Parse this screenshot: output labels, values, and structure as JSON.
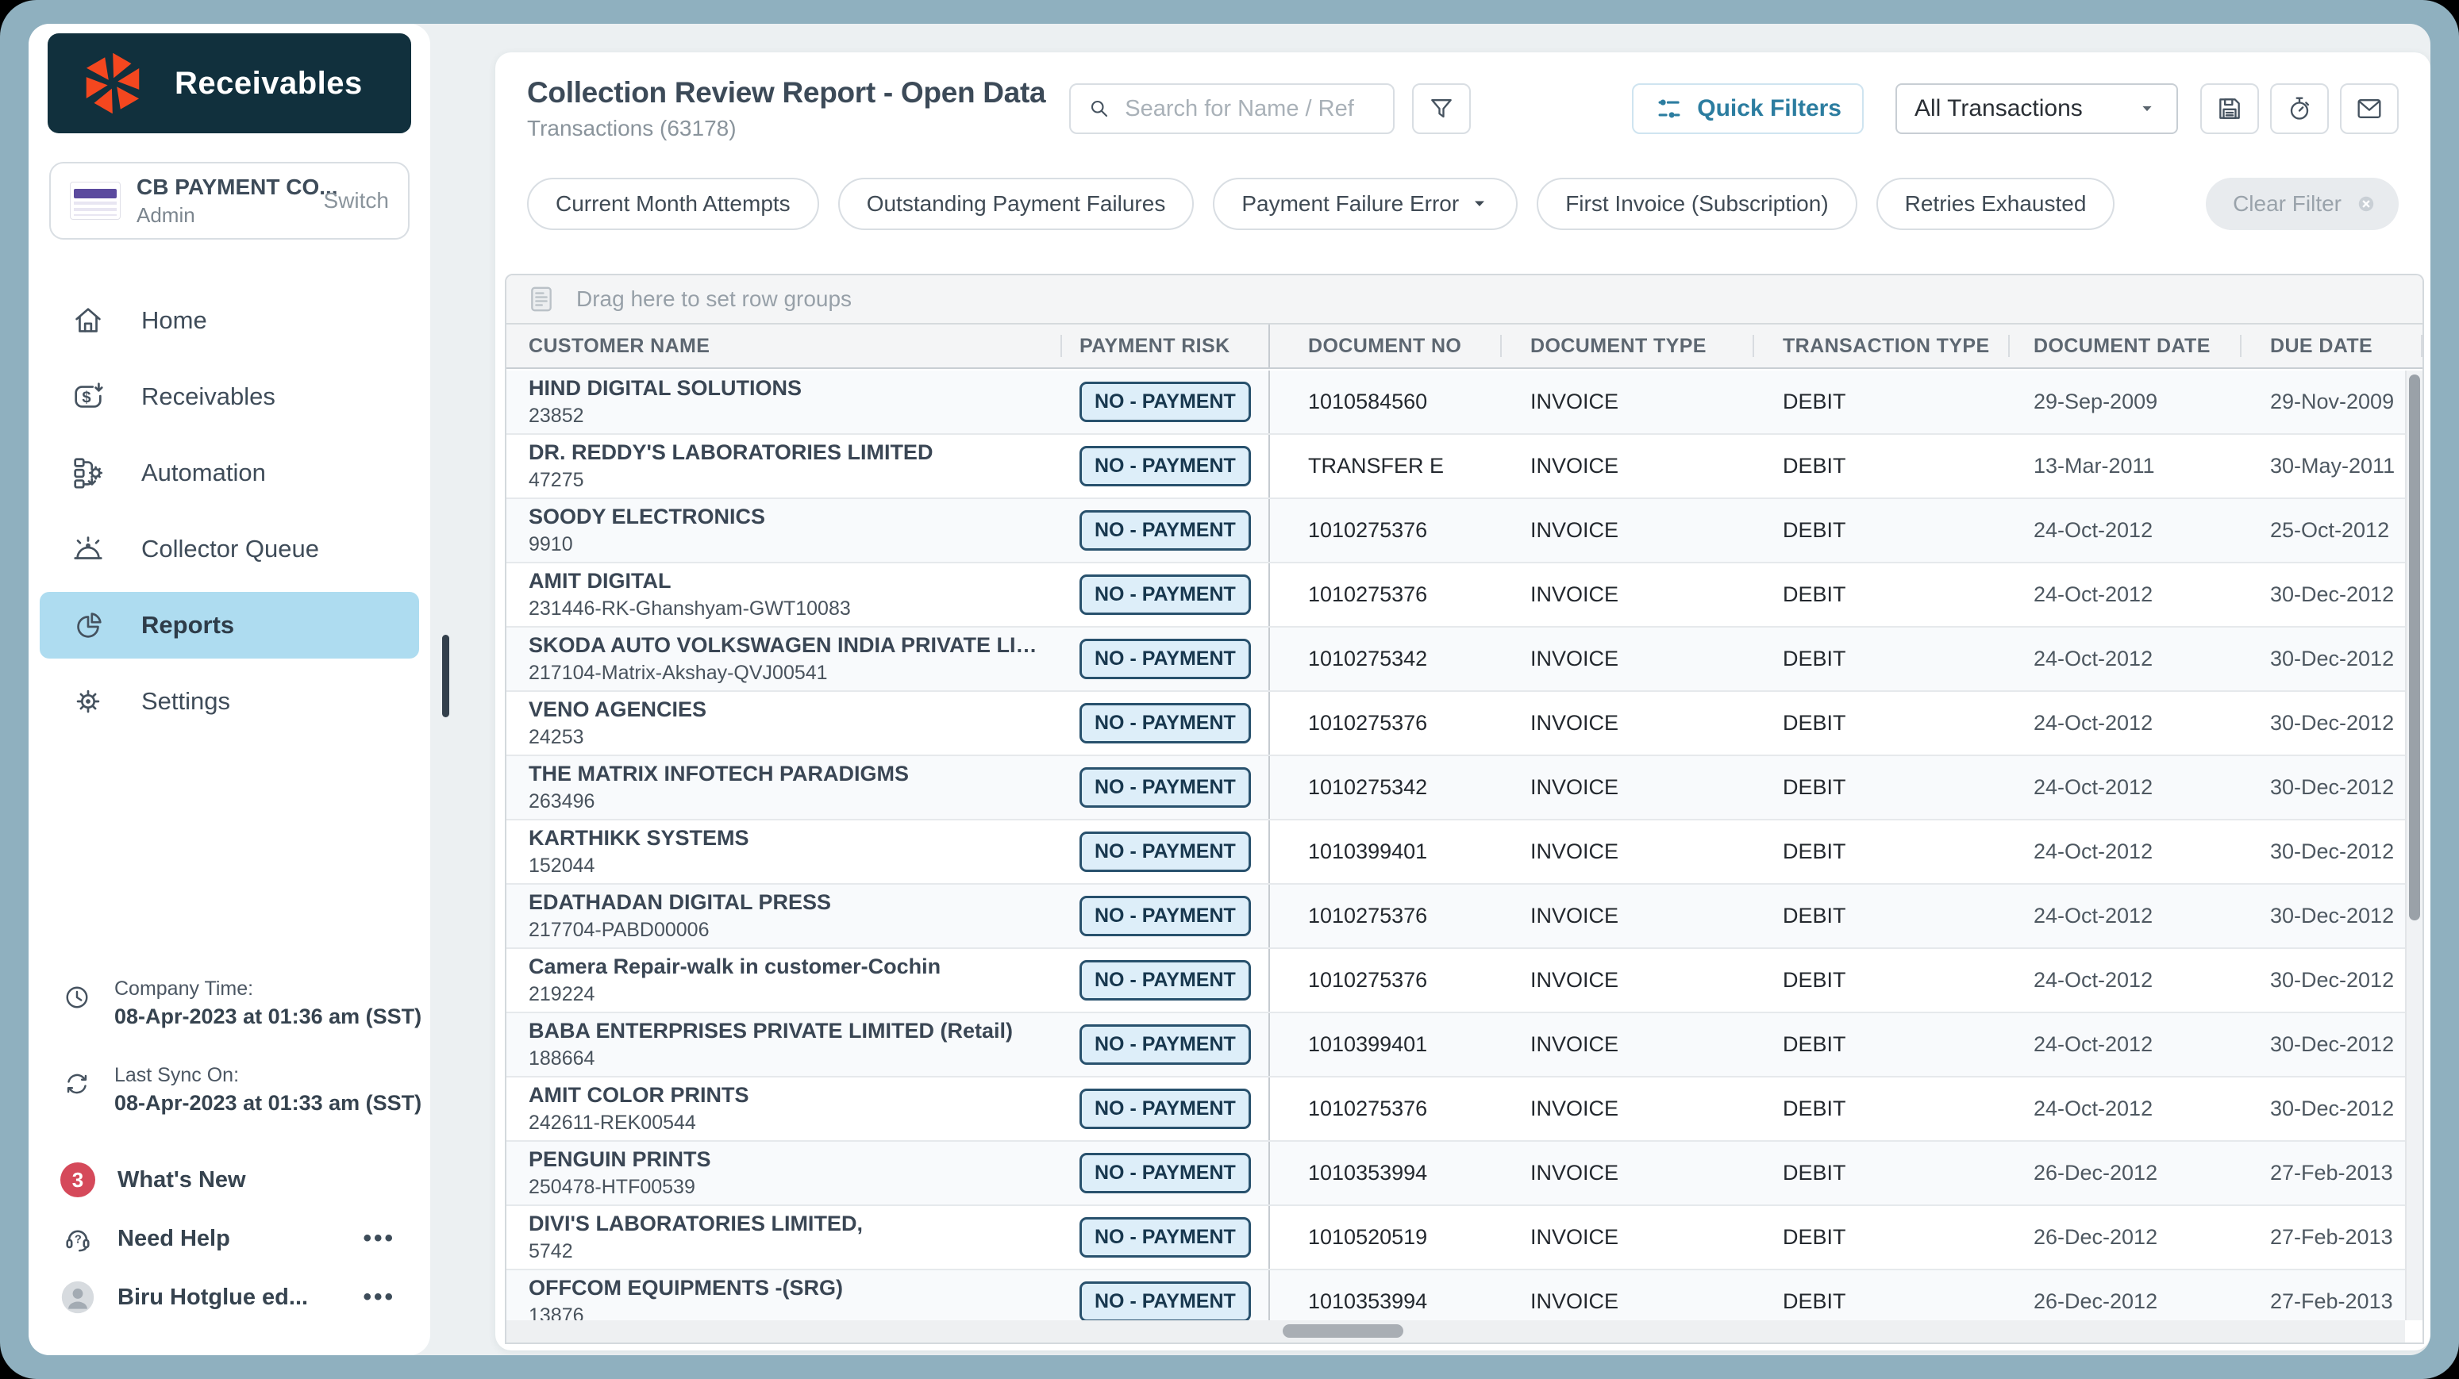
{
  "app": {
    "product_title": "Receivables"
  },
  "colors": {
    "brand_orange": "#f4471f",
    "sidebar_header_bg": "#11303d",
    "active_nav_bg": "#aedcf0",
    "quick_filters_accent": "#2c7da0",
    "risk_badge_bg": "#ddeef9",
    "risk_badge_border": "#28516d",
    "whats_new_badge_bg": "#d5495a",
    "frame_bg": "#8fb0bf"
  },
  "sidebar": {
    "company": {
      "name": "CB PAYMENT CO...",
      "role": "Admin",
      "switch_label": "Switch"
    },
    "nav": [
      {
        "icon": "home-icon",
        "label": "Home"
      },
      {
        "icon": "receivables-icon",
        "label": "Receivables"
      },
      {
        "icon": "automation-icon",
        "label": "Automation"
      },
      {
        "icon": "collector-queue-icon",
        "label": "Collector Queue"
      },
      {
        "icon": "reports-icon",
        "label": "Reports",
        "active": true
      },
      {
        "icon": "settings-icon",
        "label": "Settings"
      }
    ],
    "footer": {
      "company_time_label": "Company Time:",
      "company_time_value": "08-Apr-2023 at 01:36 am (SST)",
      "last_sync_label": "Last Sync On:",
      "last_sync_value": "08-Apr-2023 at 01:33 am (SST)",
      "whats_new_badge": "3",
      "whats_new_label": "What's New",
      "need_help_label": "Need Help",
      "need_help_more": "•••",
      "user_name": "Biru Hotglue ed...",
      "user_more": "•••"
    }
  },
  "header": {
    "title": "Collection Review Report - Open Data",
    "subtitle": "Transactions (63178)",
    "search_placeholder": "Search for Name / Ref",
    "quick_filters_label": "Quick Filters",
    "transactions_dropdown_value": "All Transactions"
  },
  "filters": {
    "chips": [
      {
        "label": "Current Month Attempts"
      },
      {
        "label": "Outstanding Payment Failures"
      },
      {
        "label": "Payment Failure Error",
        "caret": true
      },
      {
        "label": "First Invoice (Subscription)"
      },
      {
        "label": "Retries Exhausted"
      }
    ],
    "clear_label": "Clear Filter"
  },
  "table": {
    "drag_hint": "Drag here to set row groups",
    "columns": [
      "CUSTOMER NAME",
      "PAYMENT RISK",
      "DOCUMENT NO",
      "DOCUMENT TYPE",
      "TRANSACTION TYPE",
      "DOCUMENT DATE",
      "DUE DATE"
    ],
    "rows": [
      {
        "customer": "HIND DIGITAL SOLUTIONS",
        "ref": "23852",
        "risk": "NO - PAYMENT",
        "doc_no": "1010584560",
        "doc_type": "INVOICE",
        "txn_type": "DEBIT",
        "doc_date": "29-Sep-2009",
        "due_date": "29-Nov-2009"
      },
      {
        "customer": "DR. REDDY'S LABORATORIES LIMITED",
        "ref": "47275",
        "risk": "NO - PAYMENT",
        "doc_no": "TRANSFER E",
        "doc_type": "INVOICE",
        "txn_type": "DEBIT",
        "doc_date": "13-Mar-2011",
        "due_date": "30-May-2011"
      },
      {
        "customer": "SOODY ELECTRONICS",
        "ref": "9910",
        "risk": "NO - PAYMENT",
        "doc_no": "1010275376",
        "doc_type": "INVOICE",
        "txn_type": "DEBIT",
        "doc_date": "24-Oct-2012",
        "due_date": "25-Oct-2012"
      },
      {
        "customer": "AMIT DIGITAL",
        "ref": "231446-RK-Ghanshyam-GWT10083",
        "risk": "NO - PAYMENT",
        "doc_no": "1010275376",
        "doc_type": "INVOICE",
        "txn_type": "DEBIT",
        "doc_date": "24-Oct-2012",
        "due_date": "30-Dec-2012"
      },
      {
        "customer": "SKODA AUTO VOLKSWAGEN INDIA PRIVATE LIMITED",
        "ref": "217104-Matrix-Akshay-QVJ00541",
        "risk": "NO - PAYMENT",
        "doc_no": "1010275342",
        "doc_type": "INVOICE",
        "txn_type": "DEBIT",
        "doc_date": "24-Oct-2012",
        "due_date": "30-Dec-2012"
      },
      {
        "customer": "VENO AGENCIES",
        "ref": "24253",
        "risk": "NO - PAYMENT",
        "doc_no": "1010275376",
        "doc_type": "INVOICE",
        "txn_type": "DEBIT",
        "doc_date": "24-Oct-2012",
        "due_date": "30-Dec-2012"
      },
      {
        "customer": "THE MATRIX INFOTECH PARADIGMS",
        "ref": "263496",
        "risk": "NO - PAYMENT",
        "doc_no": "1010275342",
        "doc_type": "INVOICE",
        "txn_type": "DEBIT",
        "doc_date": "24-Oct-2012",
        "due_date": "30-Dec-2012"
      },
      {
        "customer": "KARTHIKK SYSTEMS",
        "ref": "152044",
        "risk": "NO - PAYMENT",
        "doc_no": "1010399401",
        "doc_type": "INVOICE",
        "txn_type": "DEBIT",
        "doc_date": "24-Oct-2012",
        "due_date": "30-Dec-2012"
      },
      {
        "customer": "EDATHADAN DIGITAL PRESS",
        "ref": "217704-PABD00006",
        "risk": "NO - PAYMENT",
        "doc_no": "1010275376",
        "doc_type": "INVOICE",
        "txn_type": "DEBIT",
        "doc_date": "24-Oct-2012",
        "due_date": "30-Dec-2012"
      },
      {
        "customer": "Camera Repair-walk in customer-Cochin",
        "ref": "219224",
        "risk": "NO - PAYMENT",
        "doc_no": "1010275376",
        "doc_type": "INVOICE",
        "txn_type": "DEBIT",
        "doc_date": "24-Oct-2012",
        "due_date": "30-Dec-2012"
      },
      {
        "customer": "BABA ENTERPRISES PRIVATE LIMITED (Retail)",
        "ref": "188664",
        "risk": "NO - PAYMENT",
        "doc_no": "1010399401",
        "doc_type": "INVOICE",
        "txn_type": "DEBIT",
        "doc_date": "24-Oct-2012",
        "due_date": "30-Dec-2012"
      },
      {
        "customer": "AMIT COLOR PRINTS",
        "ref": "242611-REK00544",
        "risk": "NO - PAYMENT",
        "doc_no": "1010275376",
        "doc_type": "INVOICE",
        "txn_type": "DEBIT",
        "doc_date": "24-Oct-2012",
        "due_date": "30-Dec-2012"
      },
      {
        "customer": "PENGUIN PRINTS",
        "ref": "250478-HTF00539",
        "risk": "NO - PAYMENT",
        "doc_no": "1010353994",
        "doc_type": "INVOICE",
        "txn_type": "DEBIT",
        "doc_date": "26-Dec-2012",
        "due_date": "27-Feb-2013"
      },
      {
        "customer": "DIVI'S LABORATORIES LIMITED,",
        "ref": "5742",
        "risk": "NO - PAYMENT",
        "doc_no": "1010520519",
        "doc_type": "INVOICE",
        "txn_type": "DEBIT",
        "doc_date": "26-Dec-2012",
        "due_date": "27-Feb-2013"
      },
      {
        "customer": "OFFCOM EQUIPMENTS -(SRG)",
        "ref": "13876",
        "risk": "NO - PAYMENT",
        "doc_no": "1010353994",
        "doc_type": "INVOICE",
        "txn_type": "DEBIT",
        "doc_date": "26-Dec-2012",
        "due_date": "27-Feb-2013"
      }
    ]
  }
}
